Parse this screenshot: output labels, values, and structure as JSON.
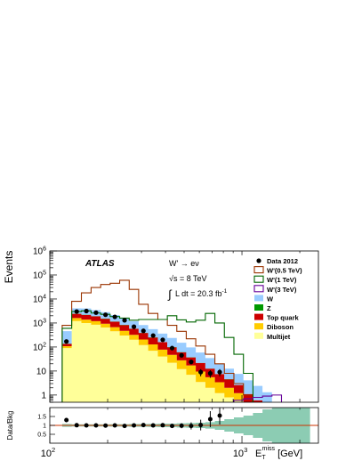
{
  "chart_data": [
    {
      "type": "area",
      "stacked": true,
      "x_scale": "log",
      "y_scale": "log",
      "ylabel": "Events",
      "xlim": [
        100,
        2500
      ],
      "ylim": [
        0.5,
        1000000
      ],
      "y_ticks": [
        {
          "value": 1,
          "label": "1"
        },
        {
          "value": 10,
          "label": "10"
        },
        {
          "value": 100,
          "label": "10",
          "exp": "2"
        },
        {
          "value": 1000,
          "label": "10",
          "exp": "3"
        },
        {
          "value": 10000,
          "label": "10",
          "exp": "4"
        },
        {
          "value": 100000,
          "label": "10",
          "exp": "5"
        },
        {
          "value": 1000000,
          "label": "10",
          "exp": "6"
        }
      ],
      "annotations": {
        "experiment": "ATLAS",
        "process": "W' → eν",
        "energy": "√s = 8 TeV",
        "lumi_int": "∫",
        "lumi_rest": "L dt = 20.3 fb",
        "lumi_exp": "-1"
      },
      "bin_edges": [
        116,
        130,
        146,
        164,
        184,
        206,
        231,
        259,
        290,
        325,
        365,
        409,
        458,
        513,
        575,
        645,
        723,
        810,
        908,
        1018,
        1141,
        1279,
        1433,
        1606,
        1800,
        2018,
        2262
      ],
      "stack": [
        {
          "name": "Multijet",
          "color": "#ffff99",
          "values": [
            90,
            1200,
            1000,
            850,
            650,
            450,
            300,
            200,
            120,
            70,
            40,
            22,
            12,
            7,
            3.5,
            2,
            1.2,
            0.8,
            0.6,
            0,
            0,
            0,
            0,
            0,
            0,
            0
          ]
        },
        {
          "name": "Diboson",
          "color": "#ffcc00",
          "values": [
            18,
            400,
            390,
            340,
            280,
            220,
            170,
            120,
            85,
            58,
            38,
            25,
            16,
            10,
            6,
            3.5,
            2.2,
            1.2,
            0.6,
            0.3,
            0.2,
            0.1,
            0,
            0,
            0,
            0
          ]
        },
        {
          "name": "Top quark",
          "color": "#cc0000",
          "values": [
            28,
            800,
            780,
            700,
            570,
            460,
            350,
            250,
            180,
            120,
            80,
            50,
            32,
            20,
            12,
            7,
            4,
            2.5,
            1.4,
            0.8,
            0.4,
            0.2,
            0,
            0,
            0,
            0
          ]
        },
        {
          "name": "Z",
          "color": "#009900",
          "values": [
            2,
            60,
            55,
            45,
            35,
            25,
            18,
            12,
            8,
            5,
            3,
            2,
            1.2,
            0.7,
            0.4,
            0.2,
            0.1,
            0.1,
            0,
            0,
            0,
            0,
            0,
            0,
            0,
            0
          ]
        },
        {
          "name": "W",
          "color": "#99ccff",
          "values": [
            320,
            1600,
            1800,
            1500,
            1300,
            1000,
            780,
            600,
            430,
            300,
            200,
            140,
            90,
            58,
            37,
            22,
            13,
            8,
            5,
            3,
            1.8,
            1,
            0,
            0,
            0,
            0
          ]
        }
      ],
      "signals": [
        {
          "name": "W'(0.5 TeV)",
          "color": "#993300",
          "values": [
            800,
            8000,
            18000,
            30000,
            40000,
            45000,
            60000,
            25000,
            6000,
            2500,
            1400,
            800,
            450,
            220,
            110,
            50,
            20,
            8,
            3,
            1,
            0,
            0,
            0,
            0,
            0,
            0
          ]
        },
        {
          "name": "W'(1 TeV)",
          "color": "#006600",
          "values": [
            600,
            3000,
            3200,
            2600,
            2300,
            1850,
            1600,
            1300,
            1400,
            1400,
            1400,
            2000,
            1350,
            1100,
            1300,
            2500,
            1000,
            250,
            50,
            8,
            0,
            0,
            0,
            0,
            0,
            0
          ]
        },
        {
          "name": "W'(3 TeV)",
          "color": "#660099",
          "values": [
            0,
            0,
            0,
            0,
            0,
            0,
            0,
            0,
            0,
            0,
            0,
            0,
            0,
            0,
            0,
            0,
            0,
            0,
            0.6,
            0.7,
            0.8,
            0.9,
            1.0,
            0,
            0,
            0
          ]
        }
      ],
      "data_points": {
        "name": "Data 2012",
        "x": [
          122,
          138,
          155,
          174,
          195,
          218,
          245,
          274,
          307,
          345,
          387,
          433,
          485,
          544,
          610,
          684,
          766
        ],
        "y": [
          170,
          3000,
          3150,
          2700,
          2200,
          1800,
          1300,
          700,
          470,
          300,
          200,
          90,
          45,
          24,
          9,
          8,
          9
        ],
        "yerr": [
          14,
          55,
          56,
          52,
          47,
          42,
          36,
          26,
          22,
          17,
          14,
          9.5,
          6.7,
          4.9,
          3,
          2.8,
          3
        ]
      }
    },
    {
      "type": "scatter",
      "x_scale": "log",
      "xlabel": "E",
      "xlabel_sub": "T",
      "xlabel_sup": "miss",
      "xlabel_unit": " [GeV]",
      "ylabel": "Data/Bkg",
      "ylim": [
        0,
        2
      ],
      "y_ticks": [
        {
          "value": 0.5,
          "label": "0.5"
        },
        {
          "value": 1,
          "label": "1"
        },
        {
          "value": 1.5,
          "label": "1.5"
        }
      ],
      "x_ticks": [
        {
          "value": 100,
          "label": "10",
          "exp": "2"
        },
        {
          "value": 1000,
          "label": "10",
          "exp": "3"
        }
      ],
      "band_color": "#66bb99",
      "band_halfwidth": [
        0.08,
        0.06,
        0.06,
        0.06,
        0.06,
        0.07,
        0.07,
        0.08,
        0.08,
        0.09,
        0.1,
        0.1,
        0.12,
        0.13,
        0.15,
        0.18,
        0.25,
        0.35,
        0.45,
        0.55,
        0.7,
        0.9,
        1.0,
        1.0,
        1.0,
        1.0
      ],
      "points": {
        "x": [
          122,
          138,
          155,
          174,
          195,
          218,
          245,
          274,
          307,
          345,
          387,
          433,
          485,
          544,
          610,
          684,
          766
        ],
        "y": [
          1.3,
          1.01,
          1.0,
          1.0,
          0.99,
          1.0,
          0.97,
          1.0,
          1.02,
          1.0,
          1.01,
          0.97,
          0.98,
          0.97,
          1.02,
          1.35,
          1.55
        ],
        "yerr": [
          0.12,
          0.02,
          0.02,
          0.02,
          0.02,
          0.02,
          0.03,
          0.04,
          0.05,
          0.06,
          0.07,
          0.1,
          0.14,
          0.2,
          0.3,
          0.45,
          0.5
        ]
      }
    }
  ]
}
